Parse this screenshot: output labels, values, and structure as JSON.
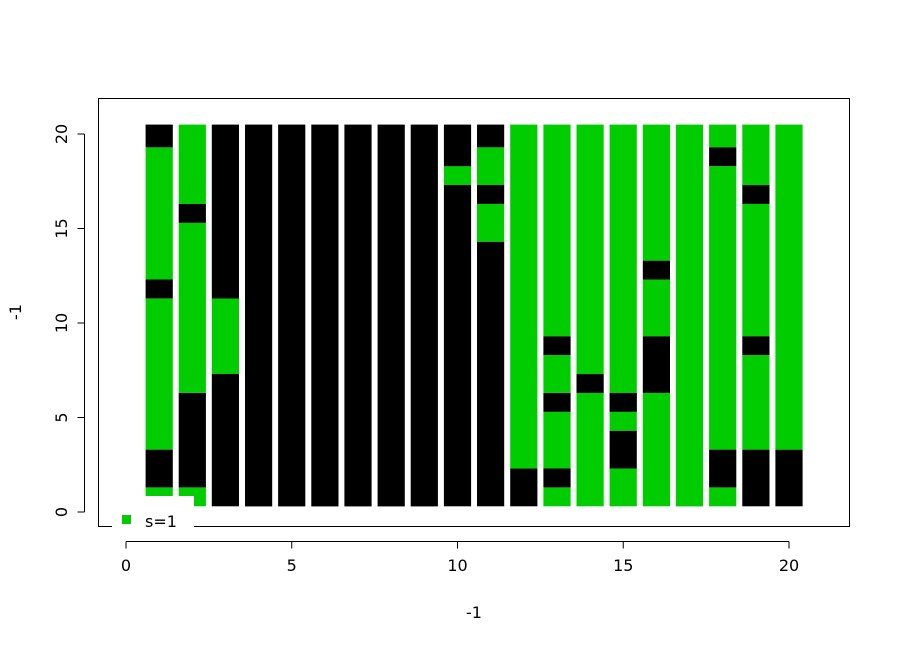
{
  "chart_data": {
    "type": "bar",
    "title": "",
    "xlabel": "-1",
    "ylabel": "-1",
    "xlim": [
      -0.8,
      21.9
    ],
    "ylim": [
      -0.8,
      21.8
    ],
    "xticks": [
      0,
      5,
      10,
      15,
      20
    ],
    "yticks": [
      0,
      5,
      10,
      15,
      20
    ],
    "grid": false,
    "colors": {
      "green": "#00cc00",
      "black": "#000000"
    },
    "legend": {
      "position": "bottom-left",
      "entries": [
        {
          "label": "s=1",
          "color": "#00cc00"
        }
      ]
    },
    "segment_top": 20.5,
    "columns": [
      {
        "x": 1,
        "segments": [
          {
            "from": 0.3,
            "to": 0.8,
            "color": "green"
          },
          {
            "from": 0.8,
            "to": 1.3,
            "color": "green"
          },
          {
            "from": 1.3,
            "to": 3.3,
            "color": "black"
          },
          {
            "from": 3.3,
            "to": 11.3,
            "color": "green"
          },
          {
            "from": 11.3,
            "to": 12.3,
            "color": "black"
          },
          {
            "from": 12.3,
            "to": 19.3,
            "color": "green"
          },
          {
            "from": 19.3,
            "to": 20.5,
            "color": "black"
          }
        ]
      },
      {
        "x": 2,
        "segments": [
          {
            "from": 0.3,
            "to": 1.3,
            "color": "green"
          },
          {
            "from": 1.3,
            "to": 6.3,
            "color": "black"
          },
          {
            "from": 6.3,
            "to": 15.3,
            "color": "green"
          },
          {
            "from": 15.3,
            "to": 16.3,
            "color": "black"
          },
          {
            "from": 16.3,
            "to": 20.5,
            "color": "green"
          }
        ]
      },
      {
        "x": 3,
        "segments": [
          {
            "from": 0.3,
            "to": 7.3,
            "color": "black"
          },
          {
            "from": 7.3,
            "to": 11.3,
            "color": "green"
          },
          {
            "from": 11.3,
            "to": 20.5,
            "color": "black"
          }
        ]
      },
      {
        "x": 4,
        "segments": [
          {
            "from": 0.3,
            "to": 20.5,
            "color": "black"
          }
        ]
      },
      {
        "x": 5,
        "segments": [
          {
            "from": 0.3,
            "to": 20.5,
            "color": "black"
          }
        ]
      },
      {
        "x": 6,
        "segments": [
          {
            "from": 0.3,
            "to": 20.5,
            "color": "black"
          }
        ]
      },
      {
        "x": 7,
        "segments": [
          {
            "from": 0.3,
            "to": 20.5,
            "color": "black"
          }
        ]
      },
      {
        "x": 8,
        "segments": [
          {
            "from": 0.3,
            "to": 20.5,
            "color": "black"
          }
        ]
      },
      {
        "x": 9,
        "segments": [
          {
            "from": 0.3,
            "to": 20.5,
            "color": "black"
          }
        ]
      },
      {
        "x": 10,
        "segments": [
          {
            "from": 0.3,
            "to": 17.3,
            "color": "black"
          },
          {
            "from": 17.3,
            "to": 18.3,
            "color": "green"
          },
          {
            "from": 18.3,
            "to": 20.5,
            "color": "black"
          }
        ]
      },
      {
        "x": 11,
        "segments": [
          {
            "from": 0.3,
            "to": 14.3,
            "color": "black"
          },
          {
            "from": 14.3,
            "to": 16.3,
            "color": "green"
          },
          {
            "from": 16.3,
            "to": 17.3,
            "color": "black"
          },
          {
            "from": 17.3,
            "to": 19.3,
            "color": "green"
          },
          {
            "from": 19.3,
            "to": 20.5,
            "color": "black"
          }
        ]
      },
      {
        "x": 12,
        "segments": [
          {
            "from": 0.3,
            "to": 2.3,
            "color": "black"
          },
          {
            "from": 2.3,
            "to": 20.5,
            "color": "green"
          }
        ]
      },
      {
        "x": 13,
        "segments": [
          {
            "from": 0.3,
            "to": 1.3,
            "color": "green"
          },
          {
            "from": 1.3,
            "to": 2.3,
            "color": "black"
          },
          {
            "from": 2.3,
            "to": 5.3,
            "color": "green"
          },
          {
            "from": 5.3,
            "to": 6.3,
            "color": "black"
          },
          {
            "from": 6.3,
            "to": 8.3,
            "color": "green"
          },
          {
            "from": 8.3,
            "to": 9.3,
            "color": "black"
          },
          {
            "from": 9.3,
            "to": 20.5,
            "color": "green"
          }
        ]
      },
      {
        "x": 14,
        "segments": [
          {
            "from": 0.3,
            "to": 6.3,
            "color": "green"
          },
          {
            "from": 6.3,
            "to": 7.3,
            "color": "black"
          },
          {
            "from": 7.3,
            "to": 20.5,
            "color": "green"
          }
        ]
      },
      {
        "x": 15,
        "segments": [
          {
            "from": 0.3,
            "to": 2.3,
            "color": "green"
          },
          {
            "from": 2.3,
            "to": 4.3,
            "color": "black"
          },
          {
            "from": 4.3,
            "to": 5.3,
            "color": "green"
          },
          {
            "from": 5.3,
            "to": 6.3,
            "color": "green"
          },
          {
            "from": 5.3,
            "to": 6.3,
            "color": "black"
          },
          {
            "from": 6.3,
            "to": 20.5,
            "color": "green"
          }
        ]
      },
      {
        "x": 16,
        "segments": [
          {
            "from": 0.3,
            "to": 6.3,
            "color": "green"
          },
          {
            "from": 6.3,
            "to": 9.3,
            "color": "black"
          },
          {
            "from": 9.3,
            "to": 12.3,
            "color": "green"
          },
          {
            "from": 12.3,
            "to": 13.3,
            "color": "black"
          },
          {
            "from": 13.3,
            "to": 20.5,
            "color": "green"
          }
        ]
      },
      {
        "x": 17,
        "segments": [
          {
            "from": 0.3,
            "to": 20.5,
            "color": "green"
          }
        ]
      },
      {
        "x": 18,
        "segments": [
          {
            "from": 0.3,
            "to": 1.3,
            "color": "green"
          },
          {
            "from": 1.3,
            "to": 3.3,
            "color": "black"
          },
          {
            "from": 3.3,
            "to": 18.3,
            "color": "green"
          },
          {
            "from": 18.3,
            "to": 19.3,
            "color": "black"
          },
          {
            "from": 19.3,
            "to": 20.5,
            "color": "green"
          }
        ]
      },
      {
        "x": 19,
        "segments": [
          {
            "from": 0.3,
            "to": 3.3,
            "color": "black"
          },
          {
            "from": 3.3,
            "to": 8.3,
            "color": "green"
          },
          {
            "from": 8.3,
            "to": 9.3,
            "color": "black"
          },
          {
            "from": 9.3,
            "to": 16.3,
            "color": "green"
          },
          {
            "from": 16.3,
            "to": 17.3,
            "color": "black"
          },
          {
            "from": 17.3,
            "to": 20.5,
            "color": "green"
          }
        ]
      },
      {
        "x": 20,
        "segments": [
          {
            "from": 0.3,
            "to": 3.3,
            "color": "black"
          },
          {
            "from": 3.3,
            "to": 20.5,
            "color": "green"
          }
        ]
      }
    ]
  }
}
